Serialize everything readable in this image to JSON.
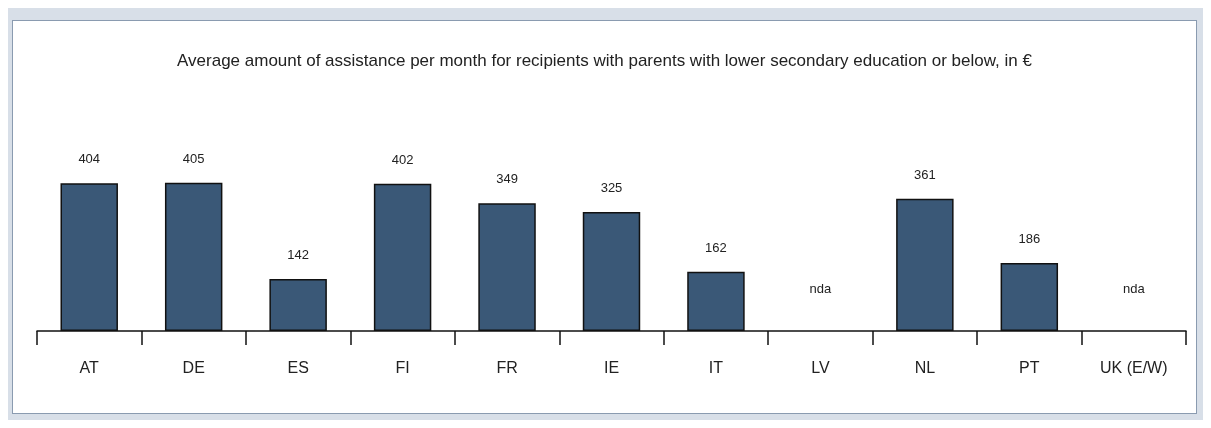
{
  "chart_data": {
    "type": "bar",
    "title": "Average amount of assistance per month for recipients with parents with lower secondary education or below, in €",
    "categories": [
      "AT",
      "DE",
      "ES",
      "FI",
      "FR",
      "IE",
      "IT",
      "LV",
      "NL",
      "PT",
      "UK (E/W)"
    ],
    "values": [
      404,
      405,
      142,
      402,
      349,
      325,
      162,
      null,
      361,
      186,
      null
    ],
    "value_labels": [
      "404",
      "405",
      "142",
      "402",
      "349",
      "325",
      "162",
      "nda",
      "361",
      "186",
      "nda"
    ],
    "color": "#3a5877",
    "grid": false
  }
}
